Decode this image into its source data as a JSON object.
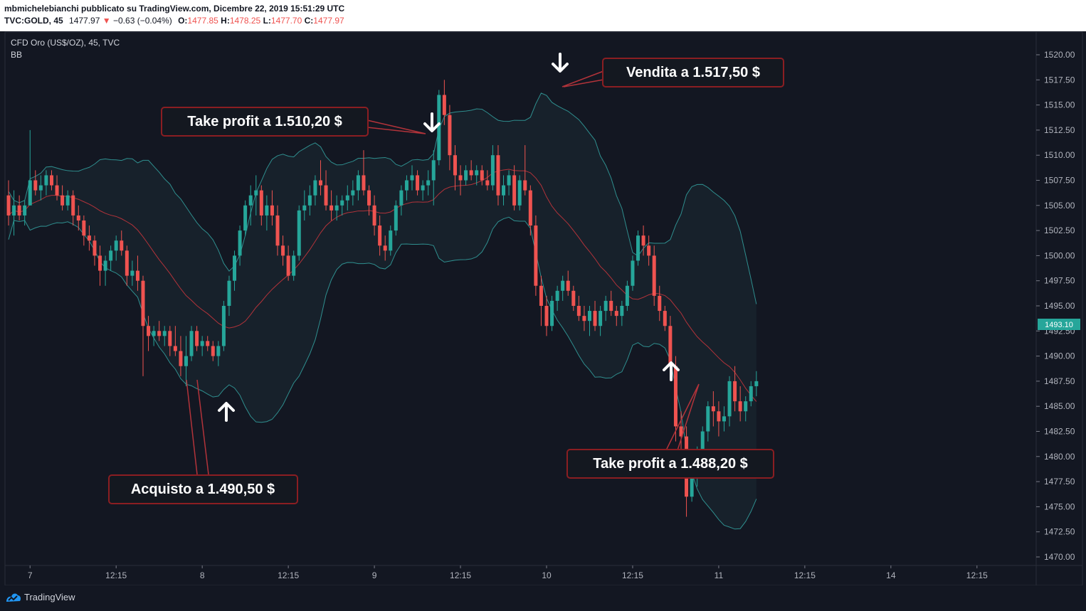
{
  "header": {
    "line1": "mbmichelebianchi pubblicato su TradingView.com, Dicembre 22, 2019 15:51:29 UTC",
    "symbol": "TVC:GOLD, 45",
    "last": "1477.97",
    "change": "−0.63 (−0.04%)",
    "o_label": "O:",
    "o": "1477.85",
    "h_label": "H:",
    "h": "1478.25",
    "l_label": "L:",
    "l": "1477.70",
    "c_label": "C:",
    "c": "1477.97"
  },
  "legend": {
    "title": "CFD Oro (US$/OZ), 45, TVC",
    "indicator": "BB"
  },
  "price_badge": "1493.10",
  "footer": {
    "brand": "TradingView"
  },
  "colors": {
    "up": "#26a69a",
    "down": "#ef5350",
    "basis": "#b2333a",
    "band": "#2f8f8f",
    "background": "#131722",
    "callout_border": "#8b1e22"
  },
  "chart_data": {
    "type": "candlestick",
    "y_axis": {
      "min": 1470.0,
      "max": 1520.0,
      "step": 2.5,
      "side": "right",
      "ticks": [
        "1520.00",
        "1517.50",
        "1515.00",
        "1512.50",
        "1510.00",
        "1507.50",
        "1505.00",
        "1502.50",
        "1500.00",
        "1497.50",
        "1495.00",
        "1492.50",
        "1490.00",
        "1487.50",
        "1485.00",
        "1482.50",
        "1480.00",
        "1477.50",
        "1475.00",
        "1472.50",
        "1470.00"
      ]
    },
    "x_axis": {
      "ticks": [
        {
          "label": "7",
          "index": 4
        },
        {
          "label": "12:15",
          "index": 20
        },
        {
          "label": "8",
          "index": 36
        },
        {
          "label": "12:15",
          "index": 52
        },
        {
          "label": "9",
          "index": 68
        },
        {
          "label": "12:15",
          "index": 84
        },
        {
          "label": "10",
          "index": 100
        },
        {
          "label": "12:15",
          "index": 116
        },
        {
          "label": "11",
          "index": 132
        },
        {
          "label": "12:15",
          "index": 148
        },
        {
          "label": "14",
          "index": 164
        },
        {
          "label": "12:15",
          "index": 180
        }
      ]
    },
    "bars": [
      [
        1506,
        1507.5,
        1503,
        1504
      ],
      [
        1504,
        1506.5,
        1502,
        1505
      ],
      [
        1505,
        1506,
        1503.5,
        1504
      ],
      [
        1504,
        1505.5,
        1503,
        1505
      ],
      [
        1505,
        1512.5,
        1505,
        1507.5
      ],
      [
        1507.5,
        1508.5,
        1506,
        1506.5
      ],
      [
        1506.5,
        1508,
        1505.5,
        1507
      ],
      [
        1507,
        1508.5,
        1506,
        1508
      ],
      [
        1508,
        1508.5,
        1506.5,
        1507
      ],
      [
        1507,
        1508,
        1505.5,
        1506
      ],
      [
        1506,
        1507,
        1504.5,
        1505
      ],
      [
        1505,
        1506.5,
        1504.5,
        1506
      ],
      [
        1506,
        1506.5,
        1503,
        1504
      ],
      [
        1504,
        1505,
        1502.5,
        1503.5
      ],
      [
        1503.5,
        1504,
        1501,
        1502
      ],
      [
        1502,
        1503,
        1500.5,
        1501.5
      ],
      [
        1501.5,
        1502,
        1499,
        1500
      ],
      [
        1500,
        1501,
        1497,
        1498.5
      ],
      [
        1498.5,
        1500,
        1497,
        1499.5
      ],
      [
        1499.5,
        1501,
        1498.5,
        1500.5
      ],
      [
        1500.5,
        1502,
        1499.5,
        1501.5
      ],
      [
        1501.5,
        1502.5,
        1500,
        1500.5
      ],
      [
        1500.5,
        1501,
        1497,
        1498
      ],
      [
        1498,
        1499.5,
        1497,
        1498.5
      ],
      [
        1498.5,
        1500,
        1496.5,
        1497.5
      ],
      [
        1497.5,
        1498,
        1488,
        1493
      ],
      [
        1493,
        1494,
        1490.5,
        1492
      ],
      [
        1492,
        1493,
        1491,
        1492.5
      ],
      [
        1492.5,
        1493.5,
        1491.5,
        1492
      ],
      [
        1492,
        1493,
        1491,
        1492.5
      ],
      [
        1492.5,
        1493,
        1490,
        1491
      ],
      [
        1491,
        1493,
        1490,
        1490.5
      ],
      [
        1490.5,
        1492,
        1488,
        1489
      ],
      [
        1489,
        1492,
        1487,
        1490
      ],
      [
        1490,
        1493,
        1489.5,
        1492.5
      ],
      [
        1492.5,
        1493,
        1490.5,
        1491
      ],
      [
        1491,
        1492,
        1490,
        1491.5
      ],
      [
        1491.5,
        1492,
        1490.5,
        1491
      ],
      [
        1491,
        1491.5,
        1489.5,
        1490
      ],
      [
        1490,
        1491.5,
        1489,
        1491
      ],
      [
        1491,
        1495.5,
        1490.5,
        1495
      ],
      [
        1495,
        1498,
        1494,
        1497.5
      ],
      [
        1497.5,
        1500.5,
        1496.5,
        1500
      ],
      [
        1500,
        1503,
        1499,
        1502.5
      ],
      [
        1502.5,
        1505.5,
        1502,
        1505
      ],
      [
        1505,
        1507,
        1503,
        1506
      ],
      [
        1506,
        1508,
        1504,
        1506.5
      ],
      [
        1506.5,
        1507,
        1503,
        1504
      ],
      [
        1504,
        1506,
        1502.5,
        1505
      ],
      [
        1505,
        1506.5,
        1503,
        1504
      ],
      [
        1504,
        1505,
        1500,
        1501
      ],
      [
        1501,
        1502,
        1499,
        1500
      ],
      [
        1500,
        1501,
        1497.5,
        1498
      ],
      [
        1498,
        1500.5,
        1497.5,
        1500
      ],
      [
        1500,
        1505,
        1499.5,
        1504.5
      ],
      [
        1504.5,
        1506.5,
        1503.5,
        1505
      ],
      [
        1505,
        1507,
        1504,
        1506
      ],
      [
        1506,
        1508,
        1505,
        1507.5
      ],
      [
        1507.5,
        1509.5,
        1506,
        1507
      ],
      [
        1507,
        1508.5,
        1504.5,
        1505
      ],
      [
        1505,
        1506.5,
        1503.5,
        1504.5
      ],
      [
        1504.5,
        1506,
        1503.5,
        1505
      ],
      [
        1505,
        1506,
        1504,
        1505.5
      ],
      [
        1505.5,
        1507,
        1504.5,
        1506
      ],
      [
        1506,
        1507.5,
        1505,
        1506.5
      ],
      [
        1506.5,
        1508.5,
        1505.5,
        1508
      ],
      [
        1508,
        1510.5,
        1506,
        1506.5
      ],
      [
        1506.5,
        1507,
        1504,
        1505
      ],
      [
        1505,
        1506,
        1502,
        1503
      ],
      [
        1503,
        1504,
        1500,
        1501
      ],
      [
        1501,
        1502,
        1499.5,
        1500.5
      ],
      [
        1500.5,
        1503,
        1500,
        1502.5
      ],
      [
        1502.5,
        1505.5,
        1502,
        1505
      ],
      [
        1505,
        1507,
        1504,
        1506.5
      ],
      [
        1506.5,
        1508,
        1505.5,
        1507.5
      ],
      [
        1507.5,
        1509,
        1506.5,
        1508
      ],
      [
        1508,
        1508.5,
        1506,
        1506.5
      ],
      [
        1506.5,
        1507.5,
        1505.5,
        1507
      ],
      [
        1507,
        1508.5,
        1506,
        1507.5
      ],
      [
        1507.5,
        1510.5,
        1505,
        1509.5
      ],
      [
        1509.5,
        1516.5,
        1509,
        1516
      ],
      [
        1516,
        1517.5,
        1513,
        1514
      ],
      [
        1514,
        1515,
        1508.5,
        1510
      ],
      [
        1510,
        1511,
        1506.5,
        1508
      ],
      [
        1508,
        1509,
        1506,
        1507.5
      ],
      [
        1507.5,
        1509,
        1507,
        1508.5
      ],
      [
        1508.5,
        1509.5,
        1507.5,
        1508
      ],
      [
        1508,
        1509,
        1507,
        1508.5
      ],
      [
        1508.5,
        1509,
        1507,
        1507.5
      ],
      [
        1507.5,
        1508.5,
        1506.5,
        1507
      ],
      [
        1507,
        1511,
        1506.5,
        1510
      ],
      [
        1510,
        1511,
        1505,
        1506
      ],
      [
        1506,
        1508,
        1505,
        1507
      ],
      [
        1507,
        1508.5,
        1506,
        1508
      ],
      [
        1508,
        1509,
        1504.5,
        1505
      ],
      [
        1505,
        1508,
        1504.5,
        1507.5
      ],
      [
        1507.5,
        1511,
        1506,
        1506.5
      ],
      [
        1506.5,
        1507,
        1502,
        1503
      ],
      [
        1503,
        1504,
        1496,
        1497
      ],
      [
        1497,
        1498,
        1493,
        1495
      ],
      [
        1495,
        1496,
        1492,
        1493
      ],
      [
        1493,
        1496,
        1492.5,
        1495.5
      ],
      [
        1495.5,
        1497,
        1494.5,
        1496.5
      ],
      [
        1496.5,
        1498,
        1495.5,
        1497.5
      ],
      [
        1497.5,
        1498.5,
        1496,
        1496.5
      ],
      [
        1496.5,
        1497,
        1494.5,
        1495
      ],
      [
        1495,
        1496,
        1493.5,
        1494
      ],
      [
        1494,
        1495,
        1492.5,
        1493.5
      ],
      [
        1493.5,
        1495,
        1492,
        1494.5
      ],
      [
        1494.5,
        1495.5,
        1492.5,
        1493
      ],
      [
        1493,
        1495,
        1492,
        1494.5
      ],
      [
        1494.5,
        1496,
        1493.5,
        1495.5
      ],
      [
        1495.5,
        1496.5,
        1494,
        1494.5
      ],
      [
        1494.5,
        1495,
        1493,
        1494
      ],
      [
        1494,
        1495.5,
        1493,
        1495
      ],
      [
        1495,
        1497.5,
        1494.5,
        1497
      ],
      [
        1497,
        1500,
        1496.5,
        1499.5
      ],
      [
        1499.5,
        1502.5,
        1499,
        1502
      ],
      [
        1502,
        1503,
        1500,
        1501
      ],
      [
        1501,
        1502,
        1499,
        1500
      ],
      [
        1500,
        1501,
        1495,
        1496
      ],
      [
        1496,
        1497,
        1493.5,
        1494.5
      ],
      [
        1494.5,
        1495,
        1492.5,
        1493
      ],
      [
        1493,
        1494,
        1488,
        1489
      ],
      [
        1489,
        1490,
        1481.5,
        1483
      ],
      [
        1483,
        1484.5,
        1478,
        1482
      ],
      [
        1482,
        1483,
        1474,
        1476
      ],
      [
        1476,
        1479,
        1475.5,
        1478.5
      ],
      [
        1478.5,
        1481,
        1477,
        1480.5
      ],
      [
        1480.5,
        1483,
        1479.5,
        1482.5
      ],
      [
        1482.5,
        1485.5,
        1481.5,
        1485
      ],
      [
        1485,
        1486.5,
        1483,
        1484.5
      ],
      [
        1484.5,
        1485.5,
        1482,
        1483.5
      ],
      [
        1483.5,
        1485,
        1482.5,
        1484
      ],
      [
        1484,
        1488,
        1483,
        1487.5
      ],
      [
        1487.5,
        1489,
        1484.5,
        1485.5
      ],
      [
        1485.5,
        1487,
        1483.5,
        1484.5
      ],
      [
        1484.5,
        1486,
        1483.5,
        1485.5
      ],
      [
        1485.5,
        1487.5,
        1485,
        1487
      ],
      [
        1487,
        1488.5,
        1486,
        1487.5
      ]
    ]
  },
  "annotations": {
    "sell_label": "Vendita a 1.517,50 $",
    "take_profit_1_label": "Take profit a 1.510,20 $",
    "buy_label": "Acquisto a 1.490,50 $",
    "take_profit_2_label": "Take profit a 1.488,20 $"
  }
}
